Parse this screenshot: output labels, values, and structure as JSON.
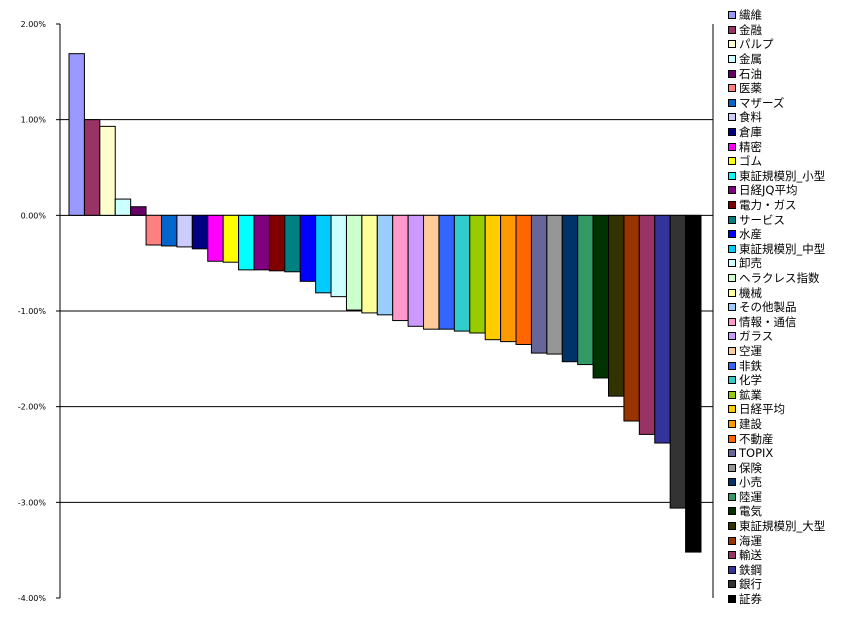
{
  "chart_data": {
    "type": "bar",
    "title": "",
    "xlabel": "",
    "ylabel": "",
    "ylim": [
      -4,
      2
    ],
    "yticks": [
      2,
      1,
      0,
      -1,
      -2,
      -3,
      -4
    ],
    "ytick_labels": [
      "2.00%",
      "1.00%",
      "0.00%",
      "-1.00%",
      "-2.00%",
      "-3.00%",
      "-4.00%"
    ],
    "grid": true,
    "legend": "right",
    "series": [
      {
        "name": "繊維",
        "value": 1.69,
        "color": "#9999FF"
      },
      {
        "name": "金融",
        "value": 1.0,
        "color": "#993366"
      },
      {
        "name": "パルプ",
        "value": 0.93,
        "color": "#FFFFCC"
      },
      {
        "name": "金属",
        "value": 0.17,
        "color": "#CCFFFF"
      },
      {
        "name": "石油",
        "value": 0.09,
        "color": "#660066"
      },
      {
        "name": "医薬",
        "value": -0.31,
        "color": "#FF8080"
      },
      {
        "name": "マザーズ",
        "value": -0.32,
        "color": "#0066CC"
      },
      {
        "name": "食料",
        "value": -0.33,
        "color": "#CCCCFF"
      },
      {
        "name": "倉庫",
        "value": -0.35,
        "color": "#000080"
      },
      {
        "name": "精密",
        "value": -0.48,
        "color": "#FF00FF"
      },
      {
        "name": "ゴム",
        "value": -0.49,
        "color": "#FFFF00"
      },
      {
        "name": "東証規模別_小型",
        "value": -0.57,
        "color": "#00FFFF"
      },
      {
        "name": "日経JQ平均",
        "value": -0.57,
        "color": "#800080"
      },
      {
        "name": "電力・ガス",
        "value": -0.58,
        "color": "#800000"
      },
      {
        "name": "サービス",
        "value": -0.59,
        "color": "#008080"
      },
      {
        "name": "水産",
        "value": -0.69,
        "color": "#0000FF"
      },
      {
        "name": "東証規模別_中型",
        "value": -0.81,
        "color": "#00CCFF"
      },
      {
        "name": "卸売",
        "value": -0.85,
        "color": "#CCFFFF"
      },
      {
        "name": "ヘラクレス指数",
        "value": -0.99,
        "color": "#CCFFCC"
      },
      {
        "name": "機械",
        "value": -1.02,
        "color": "#FFFF99"
      },
      {
        "name": "その他製品",
        "value": -1.04,
        "color": "#99CCFF"
      },
      {
        "name": "情報・通信",
        "value": -1.1,
        "color": "#FF99CC"
      },
      {
        "name": "ガラス",
        "value": -1.16,
        "color": "#CC99FF"
      },
      {
        "name": "空運",
        "value": -1.19,
        "color": "#FFCC99"
      },
      {
        "name": "非鉄",
        "value": -1.19,
        "color": "#3366FF"
      },
      {
        "name": "化学",
        "value": -1.21,
        "color": "#33CCCC"
      },
      {
        "name": "鉱業",
        "value": -1.23,
        "color": "#99CC00"
      },
      {
        "name": "日経平均",
        "value": -1.3,
        "color": "#FFCC00"
      },
      {
        "name": "建設",
        "value": -1.32,
        "color": "#FF9900"
      },
      {
        "name": "不動産",
        "value": -1.35,
        "color": "#FF6600"
      },
      {
        "name": "TOPIX",
        "value": -1.44,
        "color": "#666699"
      },
      {
        "name": "保険",
        "value": -1.45,
        "color": "#969696"
      },
      {
        "name": "小売",
        "value": -1.53,
        "color": "#003366"
      },
      {
        "name": "陸運",
        "value": -1.56,
        "color": "#339966"
      },
      {
        "name": "電気",
        "value": -1.7,
        "color": "#003300"
      },
      {
        "name": "東証規模別_大型",
        "value": -1.89,
        "color": "#333300"
      },
      {
        "name": "海運",
        "value": -2.15,
        "color": "#993300"
      },
      {
        "name": "輸送",
        "value": -2.29,
        "color": "#993366"
      },
      {
        "name": "鉄鋼",
        "value": -2.38,
        "color": "#333399"
      },
      {
        "name": "銀行",
        "value": -3.06,
        "color": "#333333"
      },
      {
        "name": "証券",
        "value": -3.52,
        "color": "#000000"
      }
    ]
  }
}
